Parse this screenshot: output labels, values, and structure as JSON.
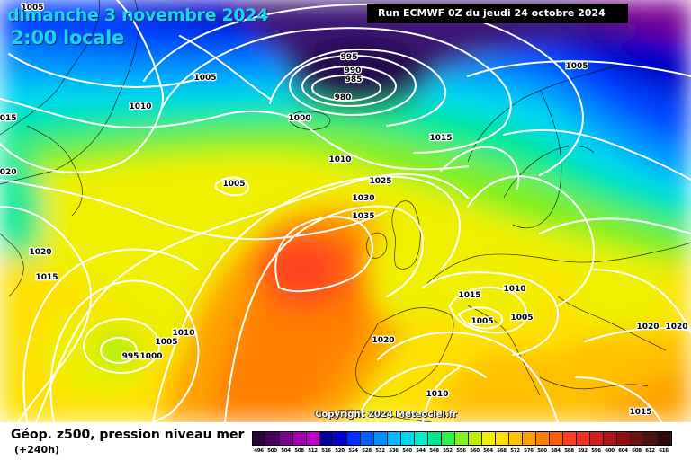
{
  "header": {
    "date": "dimanche 3 novembre 2024",
    "time": "2:00 locale",
    "run": "Run ECMWF 0Z du jeudi 24 octobre 2024"
  },
  "copyright": "Copyright 2024 Meteociel.fr",
  "legend": {
    "title": "Géop. z500, pression niveau mer",
    "subtitle": "(+240h)",
    "scale_values": [
      "496",
      "500",
      "504",
      "508",
      "512",
      "516",
      "520",
      "524",
      "528",
      "532",
      "536",
      "540",
      "544",
      "548",
      "552",
      "556",
      "560",
      "564",
      "568",
      "572",
      "576",
      "580",
      "584",
      "588",
      "592",
      "596",
      "600",
      "604",
      "608",
      "612",
      "616"
    ],
    "scale_colors": [
      "#2a0038",
      "#4a0060",
      "#7a0090",
      "#a000b0",
      "#c000c8",
      "#0000a0",
      "#0000d0",
      "#0030ff",
      "#0060ff",
      "#0090ff",
      "#00b8ff",
      "#00d8f0",
      "#00f0d0",
      "#00e890",
      "#30f050",
      "#80f020",
      "#c0f000",
      "#f0f000",
      "#ffe000",
      "#ffc000",
      "#ffa000",
      "#ff8000",
      "#ff6010",
      "#ff4020",
      "#f03020",
      "#d02020",
      "#b01818",
      "#901010",
      "#701010",
      "#501010",
      "#300808"
    ]
  },
  "isobar_labels": [
    {
      "text": "1005"
    },
    {
      "text": "1010"
    },
    {
      "text": "1005"
    },
    {
      "text": "1015"
    },
    {
      "text": "995"
    },
    {
      "text": "990"
    },
    {
      "text": "985"
    },
    {
      "text": "980"
    },
    {
      "text": "1000"
    },
    {
      "text": "1005"
    },
    {
      "text": "1015"
    },
    {
      "text": "1010"
    },
    {
      "text": "1005"
    },
    {
      "text": "1020"
    },
    {
      "text": "1025"
    },
    {
      "text": "1030"
    },
    {
      "text": "1035"
    },
    {
      "text": "1020"
    },
    {
      "text": "1015"
    },
    {
      "text": "1010"
    },
    {
      "text": "1005"
    },
    {
      "text": "995"
    },
    {
      "text": "1000"
    },
    {
      "text": "1020"
    },
    {
      "text": "1015"
    },
    {
      "text": "1010"
    },
    {
      "text": "1005"
    },
    {
      "text": "1005"
    },
    {
      "text": "1020"
    },
    {
      "text": "1020"
    },
    {
      "text": "1010"
    },
    {
      "text": "1015"
    }
  ]
}
